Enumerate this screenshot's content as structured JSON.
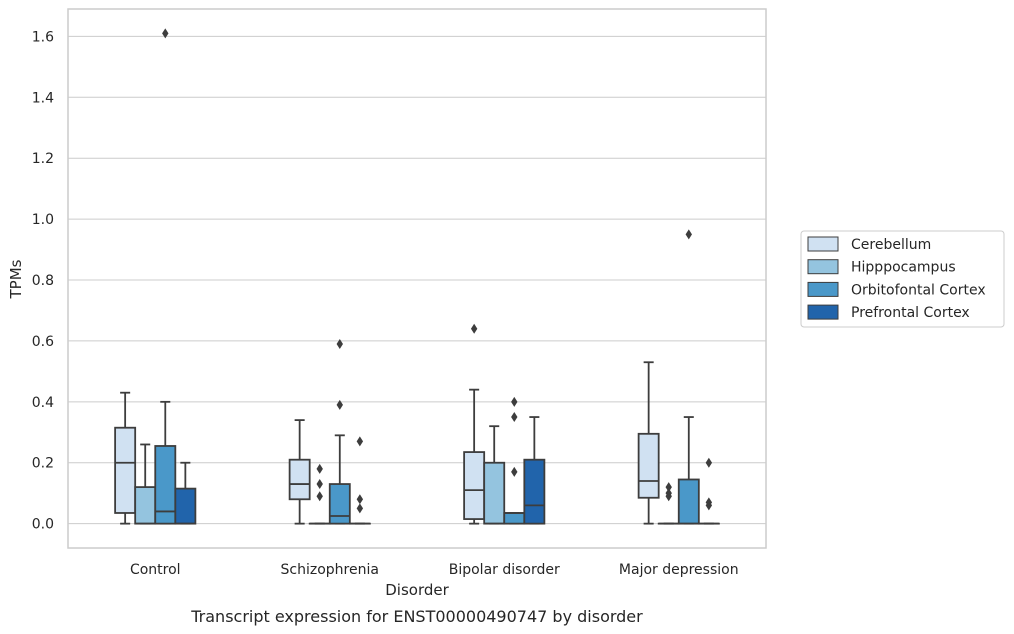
{
  "chart_data": {
    "type": "box",
    "caption": "Transcript expression for ENST00000490747 by disorder",
    "xlabel": "Disorder",
    "ylabel": "TPMs",
    "ylim": [
      -0.08,
      1.69
    ],
    "yticks": [
      "0.0",
      "0.2",
      "0.4",
      "0.6",
      "0.8",
      "1.0",
      "1.2",
      "1.4",
      "1.6"
    ],
    "grid": true,
    "legend_position": "right",
    "categories": [
      "Control",
      "Schizophrenia",
      "Bipolar disorder",
      "Major depression"
    ],
    "series": [
      {
        "name": "Cerebellum",
        "color": "#d0e1f2",
        "boxes": [
          {
            "whislo": 0.0,
            "q1": 0.035,
            "med": 0.2,
            "q3": 0.315,
            "whishi": 0.43,
            "fliers": []
          },
          {
            "whislo": 0.0,
            "q1": 0.08,
            "med": 0.13,
            "q3": 0.21,
            "whishi": 0.34,
            "fliers": []
          },
          {
            "whislo": 0.0,
            "q1": 0.015,
            "med": 0.11,
            "q3": 0.235,
            "whishi": 0.44,
            "fliers": [
              0.64
            ]
          },
          {
            "whislo": 0.0,
            "q1": 0.085,
            "med": 0.14,
            "q3": 0.295,
            "whishi": 0.53,
            "fliers": []
          }
        ]
      },
      {
        "name": "Hipppocampus",
        "color": "#94c4df",
        "boxes": [
          {
            "whislo": 0.0,
            "q1": 0.0,
            "med": 0.0,
            "q3": 0.12,
            "whishi": 0.26,
            "fliers": []
          },
          {
            "whislo": 0.0,
            "q1": 0.0,
            "med": 0.0,
            "q3": 0.0,
            "whishi": 0.0,
            "fliers": [
              0.18,
              0.13,
              0.09
            ]
          },
          {
            "whislo": 0.0,
            "q1": 0.0,
            "med": 0.0,
            "q3": 0.2,
            "whishi": 0.32,
            "fliers": []
          },
          {
            "whislo": 0.0,
            "q1": 0.0,
            "med": 0.0,
            "q3": 0.0,
            "whishi": 0.0,
            "fliers": [
              0.12,
              0.1,
              0.09
            ]
          }
        ]
      },
      {
        "name": "Orbitofontal Cortex",
        "color": "#4a98c9",
        "boxes": [
          {
            "whislo": 0.0,
            "q1": 0.0,
            "med": 0.04,
            "q3": 0.255,
            "whishi": 0.4,
            "fliers": [
              1.61
            ]
          },
          {
            "whislo": 0.0,
            "q1": 0.0,
            "med": 0.025,
            "q3": 0.13,
            "whishi": 0.29,
            "fliers": [
              0.59,
              0.39
            ]
          },
          {
            "whislo": 0.0,
            "q1": 0.0,
            "med": 0.035,
            "q3": 0.035,
            "whishi": 0.035,
            "fliers": [
              0.4,
              0.35,
              0.17
            ]
          },
          {
            "whislo": 0.0,
            "q1": 0.0,
            "med": 0.0,
            "q3": 0.145,
            "whishi": 0.35,
            "fliers": [
              0.95
            ]
          }
        ]
      },
      {
        "name": "Prefrontal Cortex",
        "color": "#2164ab",
        "boxes": [
          {
            "whislo": 0.0,
            "q1": 0.0,
            "med": 0.0,
            "q3": 0.115,
            "whishi": 0.2,
            "fliers": []
          },
          {
            "whislo": 0.0,
            "q1": 0.0,
            "med": 0.0,
            "q3": 0.0,
            "whishi": 0.0,
            "fliers": [
              0.27,
              0.08,
              0.05
            ]
          },
          {
            "whislo": 0.0,
            "q1": 0.0,
            "med": 0.06,
            "q3": 0.21,
            "whishi": 0.35,
            "fliers": []
          },
          {
            "whislo": 0.0,
            "q1": 0.0,
            "med": 0.0,
            "q3": 0.0,
            "whishi": 0.0,
            "fliers": [
              0.2,
              0.07,
              0.06
            ]
          }
        ]
      }
    ]
  }
}
